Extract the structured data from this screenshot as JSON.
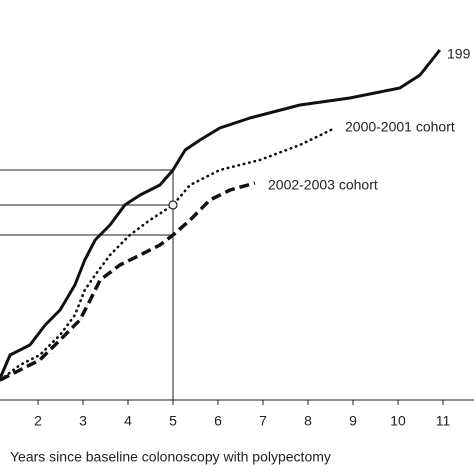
{
  "chart_data": {
    "type": "line",
    "xlabel": "Years since baseline colonoscopy with polypectomy",
    "xlim": [
      1,
      11.7
    ],
    "ylim": [
      0,
      100
    ],
    "xticks": [
      2,
      3,
      4,
      5,
      6,
      7,
      8,
      9,
      10,
      11
    ],
    "series": [
      {
        "name": "199",
        "color": "#111111",
        "style": "solid",
        "x": [
          1.16,
          1.38,
          1.82,
          2.16,
          2.49,
          2.82,
          3.04,
          3.27,
          3.6,
          3.93,
          4.27,
          4.71,
          5,
          5.27,
          5.6,
          6.04,
          6.71,
          7.82,
          8.93,
          10.04,
          10.49,
          10.93
        ],
        "values": [
          5.5,
          11.25,
          13.75,
          18.75,
          22.5,
          28.75,
          35,
          40,
          43.75,
          48.75,
          51.25,
          53.75,
          57.5,
          62.5,
          65,
          68,
          70.5,
          73.75,
          75.5,
          78,
          81.25,
          87.5
        ]
      },
      {
        "name": "2000-2001 cohort",
        "color": "#111111",
        "style": "dotted",
        "x": [
          1.16,
          1.6,
          2.04,
          2.49,
          2.82,
          3.04,
          3.27,
          3.6,
          4.04,
          4.49,
          5,
          5.38,
          6.04,
          6.93,
          7.82,
          8.6
        ],
        "values": [
          5,
          8.75,
          11.25,
          16.25,
          21.25,
          27.5,
          31.25,
          36.25,
          41.25,
          45,
          48.75,
          53.75,
          57.5,
          60,
          63.75,
          68
        ]
      },
      {
        "name": "2002-2003 cohort",
        "color": "#111111",
        "style": "dashed",
        "x": [
          1.16,
          1.6,
          2.04,
          2.49,
          2.93,
          3.16,
          3.38,
          3.82,
          4.27,
          4.71,
          5,
          5.38,
          5.82,
          6.27,
          6.82
        ],
        "values": [
          5,
          7.5,
          10,
          15,
          20,
          25,
          30,
          33.75,
          36.25,
          38.75,
          41.25,
          45,
          50,
          52.5,
          54.25
        ]
      }
    ]
  }
}
